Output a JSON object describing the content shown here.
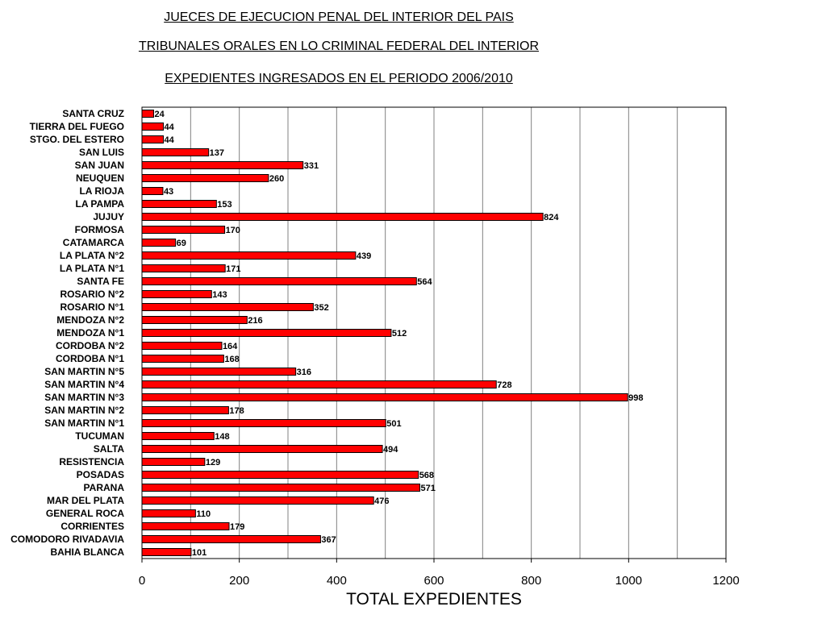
{
  "titles": {
    "line1": "JUECES DE EJECUCION PENAL DEL INTERIOR DEL PAIS",
    "line2": "TRIBUNALES ORALES EN LO CRIMINAL FEDERAL DEL INTERIOR",
    "line3": "EXPEDIENTES INGRESADOS EN EL PERIODO 2006/2010"
  },
  "chart_data": {
    "type": "bar",
    "orientation": "horizontal",
    "title": "EXPEDIENTES INGRESADOS EN EL PERIODO 2006/2010",
    "xlabel": "TOTAL EXPEDIENTES",
    "ylabel": "",
    "xlim": [
      0,
      1200
    ],
    "xticks": [
      0,
      200,
      400,
      600,
      800,
      1000,
      1200
    ],
    "grid": true,
    "legend": "none",
    "bar_color": "#ff0000",
    "categories": [
      "SANTA CRUZ",
      "TIERRA DEL FUEGO",
      "STGO. DEL ESTERO",
      "SAN LUIS",
      "SAN JUAN",
      "NEUQUEN",
      "LA RIOJA",
      "LA PAMPA",
      "JUJUY",
      "FORMOSA",
      "CATAMARCA",
      "LA PLATA N°2",
      "LA PLATA N°1",
      "SANTA FE",
      "ROSARIO N°2",
      "ROSARIO N°1",
      "MENDOZA N°2",
      "MENDOZA N°1",
      "CORDOBA N°2",
      "CORDOBA N°1",
      "SAN MARTIN N°5",
      "SAN MARTIN N°4",
      "SAN MARTIN N°3",
      "SAN MARTIN N°2",
      "SAN MARTIN N°1",
      "TUCUMAN",
      "SALTA",
      "RESISTENCIA",
      "POSADAS",
      "PARANA",
      "MAR DEL PLATA",
      "GENERAL ROCA",
      "CORRIENTES",
      "COMODORO RIVADAVIA",
      "BAHIA BLANCA"
    ],
    "values": [
      24,
      44,
      44,
      137,
      331,
      260,
      43,
      153,
      824,
      170,
      69,
      439,
      171,
      564,
      143,
      352,
      216,
      512,
      164,
      168,
      316,
      728,
      998,
      178,
      501,
      148,
      494,
      129,
      568,
      571,
      476,
      110,
      179,
      367,
      101
    ]
  }
}
